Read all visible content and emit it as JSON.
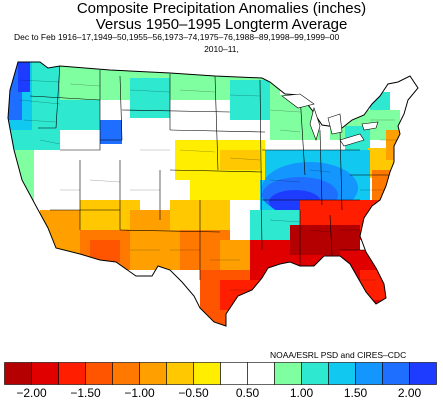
{
  "title": {
    "line1": "Composite Precipitation Anomalies (inches)",
    "line2": "Versus 1950–1995 Longterm Average",
    "line3": "Dec to Feb  1916–17,1949–50,1955–56,1973–74,1975–76,1988–89,1998–99,1999–00",
    "line4": "2010–11,"
  },
  "credit": "NOAA/ESRL PSD and CIRES–CDC",
  "legend": {
    "colors": [
      "#b40000",
      "#e10000",
      "#ff1e00",
      "#ff5500",
      "#ff7800",
      "#ffa000",
      "#ffc800",
      "#ffee00",
      "#ffffff",
      "#ffffff",
      "#80ffa0",
      "#2ee8d0",
      "#10c8f0",
      "#1496ff",
      "#1e6eff",
      "#1e3cff"
    ],
    "tick_labels": [
      "−2.00",
      "−1.50",
      "−1.00",
      "−0.50",
      "0.50",
      "1.00",
      "1.50",
      "2.00"
    ],
    "tick_after_box": [
      1,
      3,
      5,
      7,
      9,
      11,
      13,
      15
    ]
  },
  "map": {
    "land_color": "#ffffff",
    "border_color": "#000000",
    "pattern_summary": "Dry (orange/red) across the Gulf Coast and Southeast; wet (blue) in Pacific Northwest and Ohio Valley"
  }
}
